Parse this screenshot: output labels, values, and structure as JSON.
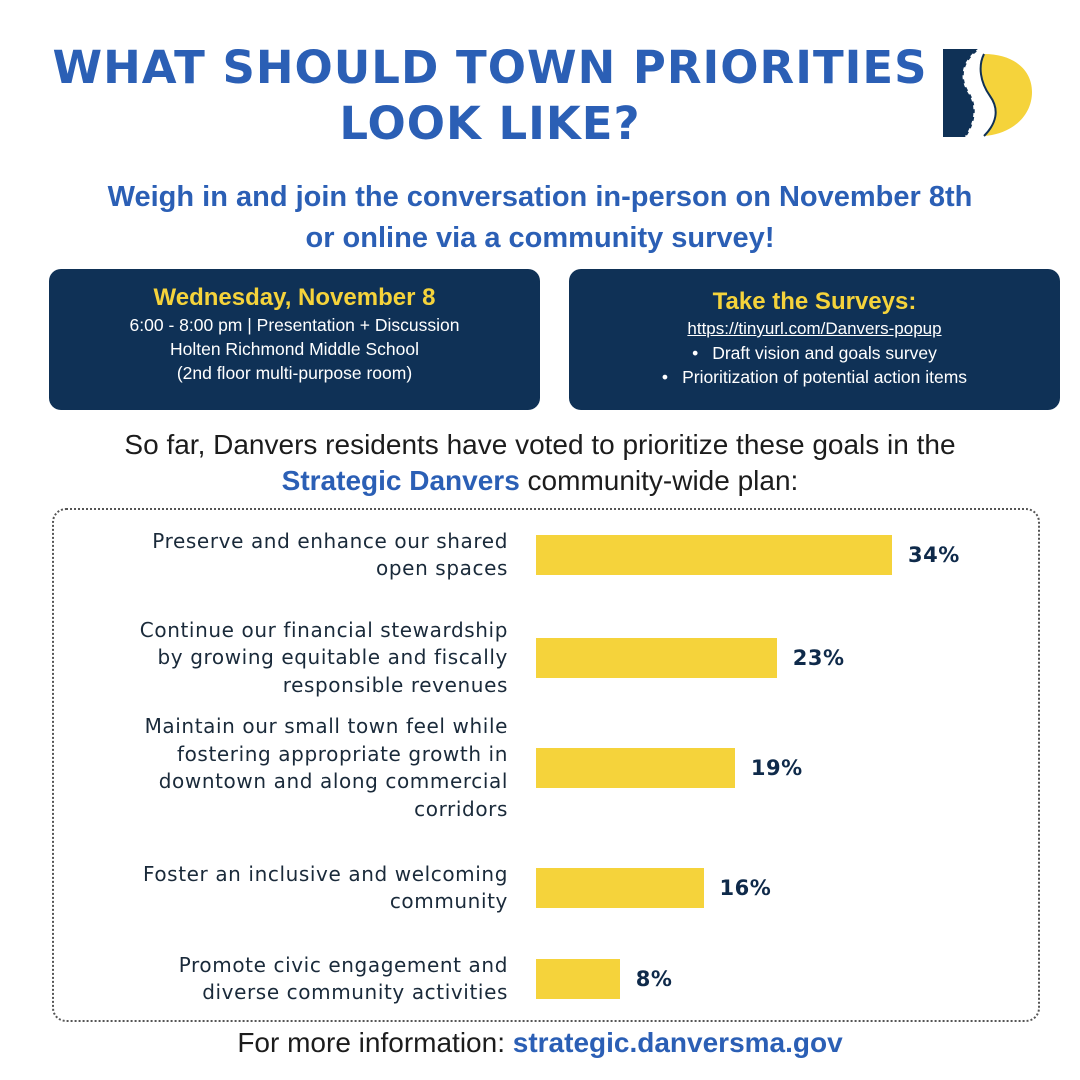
{
  "header": {
    "title_line1": "WHAT SHOULD TOWN PRIORITIES",
    "title_line2": "LOOK LIKE?",
    "subtitle_line1": "Weigh in and join the conversation in-person on November 8th",
    "subtitle_line2": "or online via a community survey!"
  },
  "colors": {
    "brand_blue": "#2b5fb5",
    "navy": "#0f3156",
    "yellow": "#f5d33b"
  },
  "event_card": {
    "heading": "Wednesday, November 8",
    "lines": [
      "6:00 - 8:00 pm | Presentation + Discussion",
      "Holten Richmond Middle School",
      "(2nd floor multi-purpose room)"
    ]
  },
  "survey_card": {
    "heading": "Take the Surveys:",
    "link": "https://tinyurl.com/Danvers-popup",
    "items": [
      "Draft vision and goals survey",
      "Prioritization of potential action items"
    ]
  },
  "intro": {
    "line1": "So far, Danvers residents have voted to prioritize these goals in the",
    "plan_name": "Strategic Danvers",
    "line2_rest": " community-wide plan:"
  },
  "chart_data": {
    "type": "bar",
    "orientation": "horizontal",
    "categories": [
      [
        "Preserve and enhance our shared",
        "open spaces"
      ],
      [
        "Continue our financial stewardship",
        "by growing equitable and fiscally",
        "responsible revenues"
      ],
      [
        "Maintain our small town feel while",
        "fostering appropriate growth in",
        "downtown and along commercial",
        "corridors"
      ],
      [
        "Foster an inclusive and welcoming",
        "community"
      ],
      [
        "Promote civic engagement and",
        "diverse community activities"
      ]
    ],
    "values": [
      34,
      23,
      19,
      16,
      8
    ],
    "labels": [
      "34%",
      "23%",
      "19%",
      "16%",
      "8%"
    ],
    "unit": "%",
    "bar_color": "#f5d33b",
    "grid": false
  },
  "footer": {
    "text": "For more information: ",
    "link": "strategic.danversma.gov"
  }
}
